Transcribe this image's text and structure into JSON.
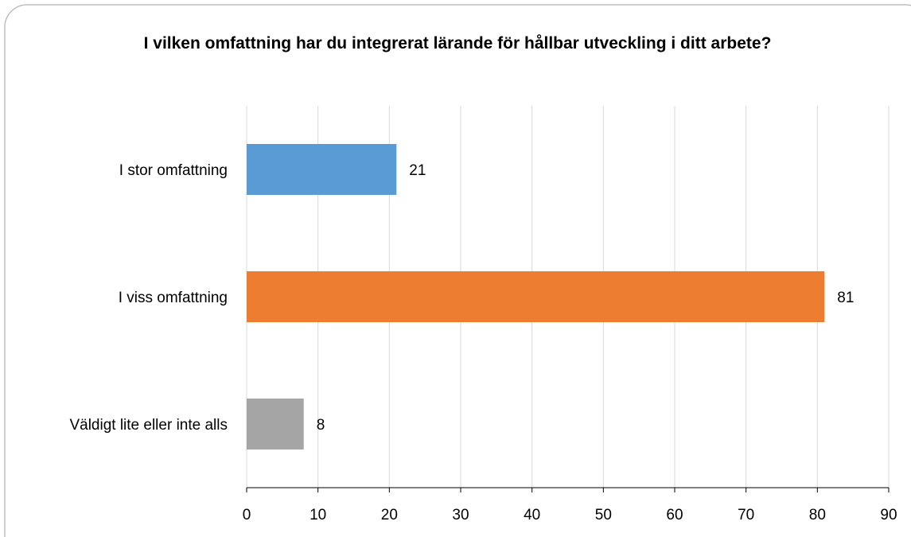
{
  "chart_data": {
    "type": "bar",
    "orientation": "horizontal",
    "title": "I vilken omfattning har du integrerat lärande för hållbar utveckling i ditt arbete?",
    "categories": [
      "I stor omfattning",
      "I viss omfattning",
      "Väldigt lite eller inte alls"
    ],
    "values": [
      21,
      81,
      8
    ],
    "colors": [
      "#5b9bd5",
      "#ed7d31",
      "#a5a5a5"
    ],
    "xlim": [
      0,
      90
    ],
    "xticks": [
      0,
      10,
      20,
      30,
      40,
      50,
      60,
      70,
      80,
      90
    ],
    "grid": true
  }
}
